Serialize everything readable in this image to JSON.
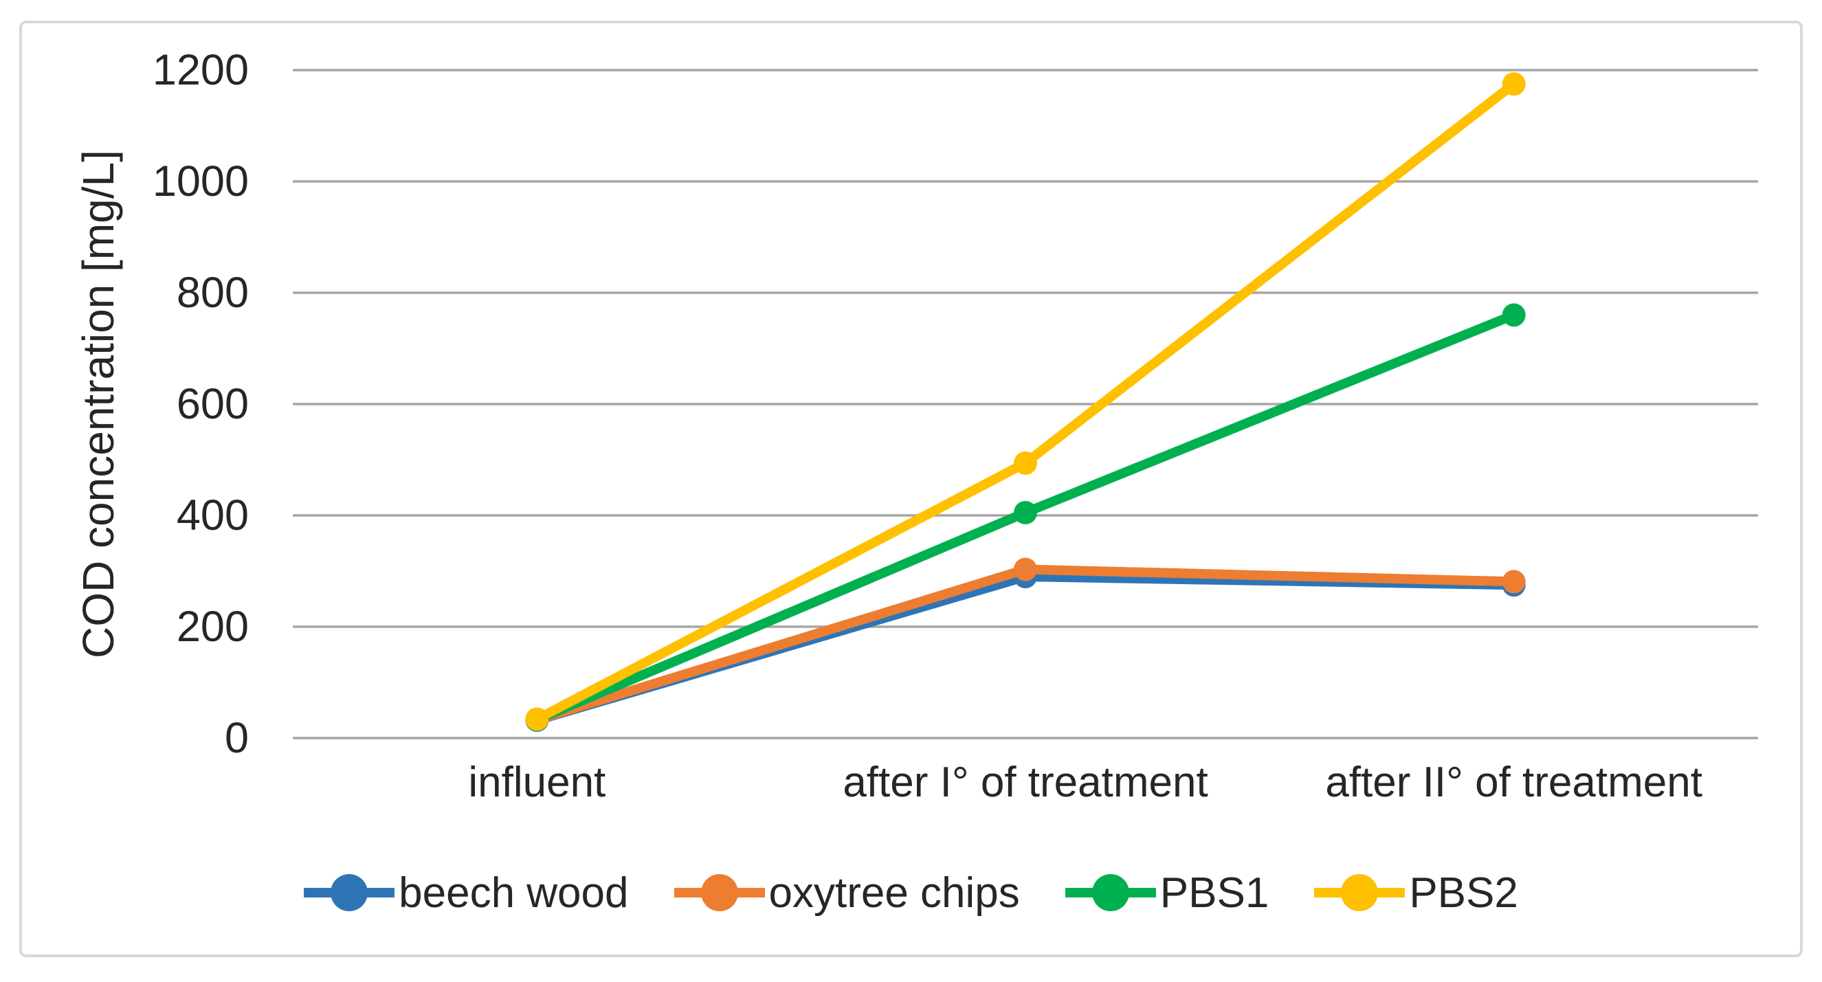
{
  "chart_data": {
    "type": "line",
    "title": "",
    "xlabel": "",
    "ylabel": "COD concentration [mg/L]",
    "categories": [
      "influent",
      "after I° of treatment",
      "after II° of treatment"
    ],
    "series": [
      {
        "name": "beech wood",
        "color": "#2E75B6",
        "values": [
          32,
          290,
          275
        ]
      },
      {
        "name": "oxytree chips",
        "color": "#ED7D31",
        "values": [
          33,
          303,
          281
        ]
      },
      {
        "name": "PBS1",
        "color": "#00B050",
        "values": [
          33,
          405,
          760
        ]
      },
      {
        "name": "PBS2",
        "color": "#FFC000",
        "values": [
          34,
          494,
          1175
        ]
      }
    ],
    "y_axis": {
      "min": 0,
      "max": 1200,
      "step": 200,
      "tick_labels": [
        "0",
        "200",
        "400",
        "600",
        "800",
        "1000",
        "1200"
      ]
    },
    "grid": true,
    "gridline_color": "#A6A6A6",
    "panel_border_color": "#D9D9D9",
    "text_color": "#262626",
    "legend_position": "bottom",
    "marker": "circle"
  }
}
